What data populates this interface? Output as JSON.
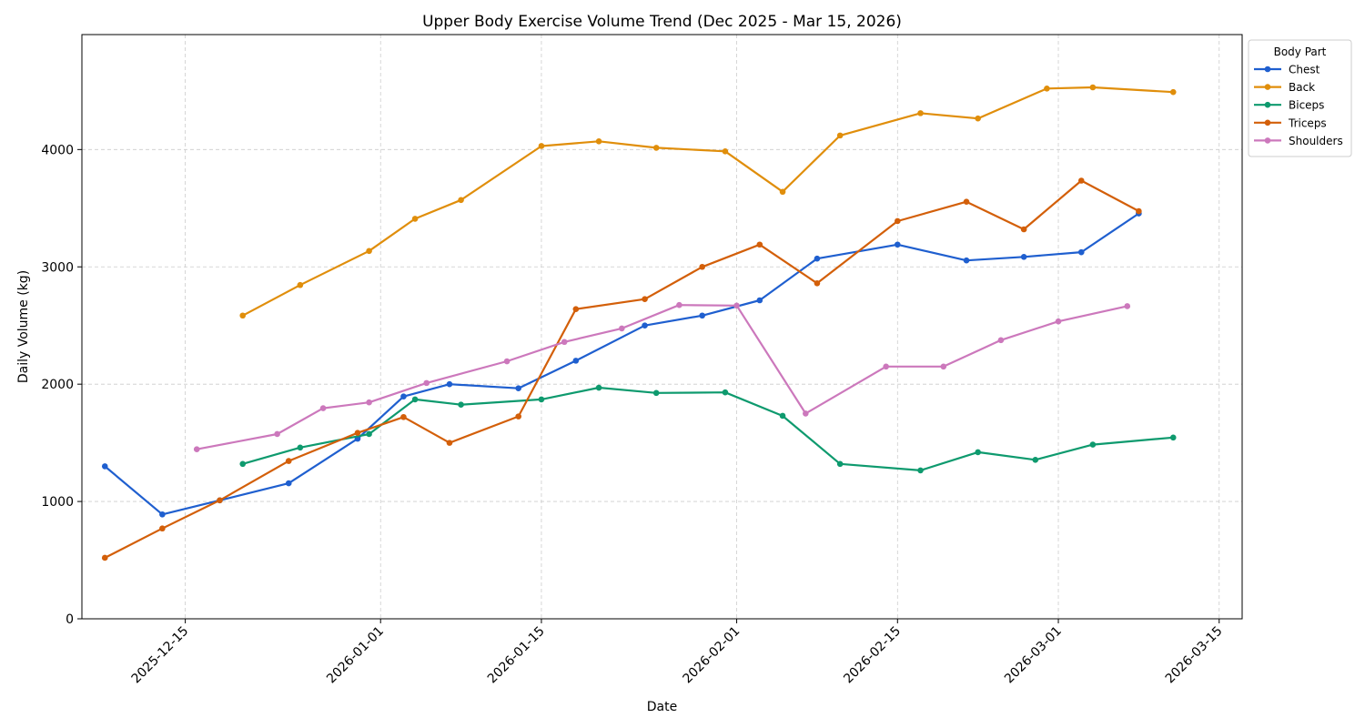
{
  "chart_data": {
    "type": "line",
    "title": "Upper Body Exercise Volume Trend (Dec 2025 - Mar 15, 2026)",
    "xlabel": "Date",
    "ylabel": "Daily Volume (kg)",
    "xlim": [
      "2025-12-06",
      "2026-03-17"
    ],
    "ylim": [
      0,
      4980
    ],
    "x_ticks": [
      "2025-12-15",
      "2026-01-01",
      "2026-01-15",
      "2026-02-01",
      "2026-02-15",
      "2026-03-01",
      "2026-03-15"
    ],
    "y_ticks": [
      0,
      1000,
      2000,
      3000,
      4000
    ],
    "grid": true,
    "legend": {
      "title": "Body Part",
      "placement": "upper-right-outside"
    },
    "series": [
      {
        "name": "Chest",
        "color": "#1f5fcf",
        "points": [
          [
            "2025-12-08",
            1300
          ],
          [
            "2025-12-13",
            890
          ],
          [
            "2025-12-18",
            1010
          ],
          [
            "2025-12-24",
            1155
          ],
          [
            "2025-12-30",
            1535
          ],
          [
            "2026-01-03",
            1895
          ],
          [
            "2026-01-07",
            2000
          ],
          [
            "2026-01-13",
            1965
          ],
          [
            "2026-01-18",
            2200
          ],
          [
            "2026-01-24",
            2500
          ],
          [
            "2026-01-29",
            2585
          ],
          [
            "2026-02-03",
            2715
          ],
          [
            "2026-02-08",
            3070
          ],
          [
            "2026-02-15",
            3190
          ],
          [
            "2026-02-21",
            3055
          ],
          [
            "2026-02-26",
            3085
          ],
          [
            "2026-03-03",
            3125
          ],
          [
            "2026-03-08",
            3455
          ]
        ]
      },
      {
        "name": "Back",
        "color": "#e08e0b",
        "points": [
          [
            "2025-12-20",
            2585
          ],
          [
            "2025-12-25",
            2845
          ],
          [
            "2025-12-31",
            3135
          ],
          [
            "2026-01-04",
            3410
          ],
          [
            "2026-01-08",
            3570
          ],
          [
            "2026-01-15",
            4030
          ],
          [
            "2026-01-20",
            4070
          ],
          [
            "2026-01-25",
            4015
          ],
          [
            "2026-01-31",
            3985
          ],
          [
            "2026-02-05",
            3640
          ],
          [
            "2026-02-10",
            4120
          ],
          [
            "2026-02-17",
            4310
          ],
          [
            "2026-02-22",
            4265
          ],
          [
            "2026-02-28",
            4520
          ],
          [
            "2026-03-04",
            4530
          ],
          [
            "2026-03-11",
            4490
          ]
        ]
      },
      {
        "name": "Biceps",
        "color": "#0e9a6e",
        "points": [
          [
            "2025-12-20",
            1320
          ],
          [
            "2025-12-25",
            1460
          ],
          [
            "2025-12-31",
            1575
          ],
          [
            "2026-01-04",
            1870
          ],
          [
            "2026-01-08",
            1825
          ],
          [
            "2026-01-15",
            1870
          ],
          [
            "2026-01-20",
            1970
          ],
          [
            "2026-01-25",
            1925
          ],
          [
            "2026-01-31",
            1930
          ],
          [
            "2026-02-05",
            1730
          ],
          [
            "2026-02-10",
            1320
          ],
          [
            "2026-02-17",
            1265
          ],
          [
            "2026-02-22",
            1420
          ],
          [
            "2026-02-27",
            1355
          ],
          [
            "2026-03-04",
            1485
          ],
          [
            "2026-03-11",
            1545
          ]
        ]
      },
      {
        "name": "Triceps",
        "color": "#d35f09",
        "points": [
          [
            "2025-12-08",
            520
          ],
          [
            "2025-12-13",
            770
          ],
          [
            "2025-12-18",
            1010
          ],
          [
            "2025-12-24",
            1345
          ],
          [
            "2025-12-30",
            1585
          ],
          [
            "2026-01-03",
            1720
          ],
          [
            "2026-01-07",
            1500
          ],
          [
            "2026-01-13",
            1725
          ],
          [
            "2026-01-18",
            2640
          ],
          [
            "2026-01-24",
            2725
          ],
          [
            "2026-01-29",
            3000
          ],
          [
            "2026-02-03",
            3190
          ],
          [
            "2026-02-08",
            2860
          ],
          [
            "2026-02-15",
            3390
          ],
          [
            "2026-02-21",
            3555
          ],
          [
            "2026-02-26",
            3320
          ],
          [
            "2026-03-03",
            3735
          ],
          [
            "2026-03-08",
            3475
          ]
        ]
      },
      {
        "name": "Shoulders",
        "color": "#cc78bc",
        "points": [
          [
            "2025-12-16",
            1445
          ],
          [
            "2025-12-23",
            1575
          ],
          [
            "2025-12-27",
            1795
          ],
          [
            "2025-12-31",
            1845
          ],
          [
            "2026-01-05",
            2010
          ],
          [
            "2026-01-12",
            2195
          ],
          [
            "2026-01-17",
            2360
          ],
          [
            "2026-01-22",
            2475
          ],
          [
            "2026-01-27",
            2675
          ],
          [
            "2026-02-01",
            2670
          ],
          [
            "2026-02-07",
            1750
          ],
          [
            "2026-02-14",
            2150
          ],
          [
            "2026-02-19",
            2150
          ],
          [
            "2026-02-24",
            2375
          ],
          [
            "2026-03-01",
            2535
          ],
          [
            "2026-03-07",
            2665
          ]
        ]
      }
    ]
  }
}
